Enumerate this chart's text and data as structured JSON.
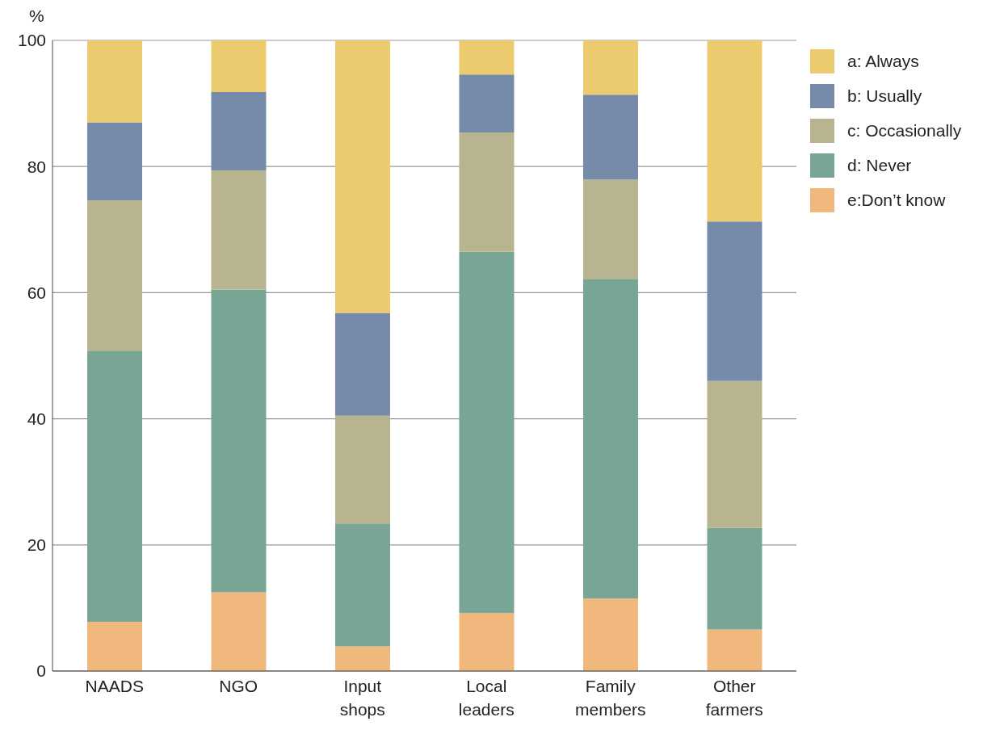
{
  "chart_data": {
    "type": "bar",
    "stacked": true,
    "ylabel": "%",
    "categories": [
      "NAADS",
      "NGO",
      "Input shops",
      "Local leaders",
      "Family members",
      "Other farmers"
    ],
    "series": [
      {
        "name": "e:Don’t know",
        "color": "#f0b87d",
        "values": [
          7.8,
          12.5,
          3.9,
          9.2,
          11.5,
          6.6
        ]
      },
      {
        "name": "d: Never",
        "color": "#79a595",
        "values": [
          43.0,
          48.0,
          19.5,
          57.3,
          50.7,
          16.1
        ]
      },
      {
        "name": "c: Occasionally",
        "color": "#b8b48f",
        "values": [
          23.8,
          18.9,
          17.1,
          18.9,
          15.7,
          23.3
        ]
      },
      {
        "name": "b: Usually",
        "color": "#768baa",
        "values": [
          12.4,
          12.4,
          16.3,
          9.2,
          13.5,
          25.3
        ]
      },
      {
        "name": "a: Always",
        "color": "#eccb6e",
        "values": [
          13.0,
          8.2,
          43.2,
          5.4,
          8.6,
          28.7
        ]
      }
    ],
    "ylim": [
      0,
      100
    ],
    "yticks": [
      0,
      20,
      40,
      60,
      80,
      100
    ],
    "grid": "y",
    "legend": "top right"
  }
}
